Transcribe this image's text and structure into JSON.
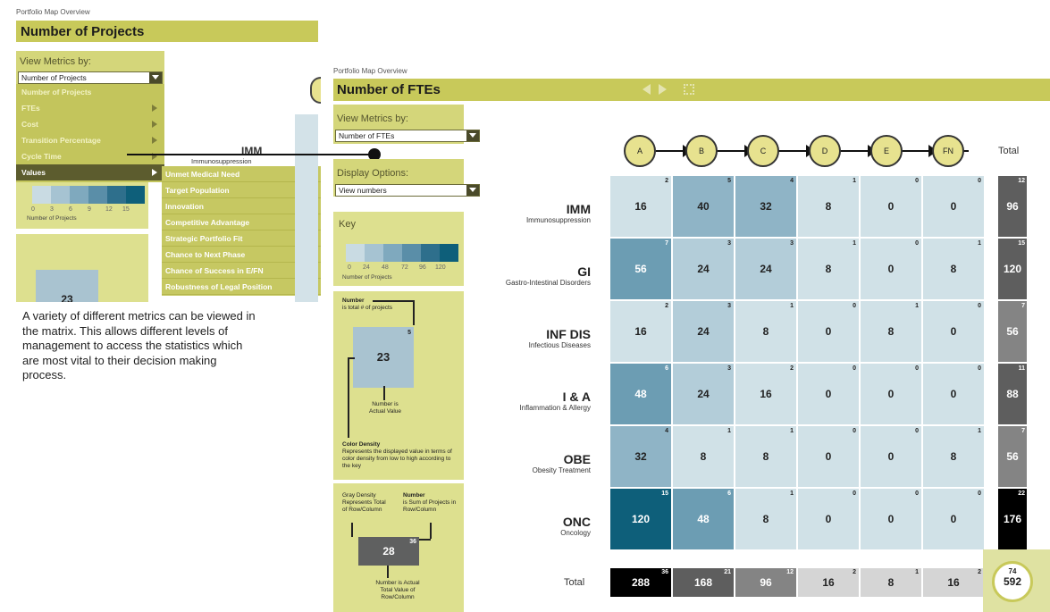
{
  "back_panel": {
    "breadcrumb": "Portfolio Map Overview",
    "title": "Number of Projects",
    "view_metrics_label": "View Metrics by:",
    "selected_metric": "Number of Projects",
    "menu_items": [
      {
        "label": "Number of Projects",
        "has_submenu": false
      },
      {
        "label": "FTEs",
        "has_submenu": true
      },
      {
        "label": "Cost",
        "has_submenu": true
      },
      {
        "label": "Transition Percentage",
        "has_submenu": true
      },
      {
        "label": "Cycle Time",
        "has_submenu": true
      },
      {
        "label": "Values",
        "has_submenu": true
      }
    ],
    "submenu_items": [
      "Unmet Medical Need",
      "Target Population",
      "Innovation",
      "Competitive Advantage",
      "Strategic Portfolio Fit",
      "Chance to Next Phase",
      "Chance of Success in E/FN",
      "Robustness of Legal Position"
    ],
    "key_ticks": [
      "0",
      "3",
      "6",
      "9",
      "12",
      "15"
    ],
    "key_caption": "Number of Projects",
    "behind_row_label": "IMM",
    "behind_row_sub": "Immunosuppression",
    "sample_value": "23"
  },
  "description": "A variety of different metrics can be viewed in the matrix. This allows different levels of management to access the statistics which are most vital to their decision making process.",
  "front_panel": {
    "breadcrumb": "Portfolio Map Overview",
    "title": "Number of FTEs",
    "view_metrics_label": "View Metrics by:",
    "selected_metric": "Number of FTEs",
    "display_options_label": "Display Options:",
    "display_option_value": "View numbers",
    "key": {
      "title": "Key",
      "ticks": [
        "0",
        "24",
        "48",
        "72",
        "96",
        "120"
      ],
      "caption": "Number of Projects"
    },
    "legend1": {
      "number_title": "Number",
      "number_desc": "is total # of projects",
      "sample_value": "23",
      "sample_count": "5",
      "actual_label": "Number is Actual Value",
      "color_density_title": "Color Density",
      "color_density_desc": "Represents the displayed value in terms of color density from low to high according to the key"
    },
    "legend2": {
      "gray_density": "Gray Density Represents Total of Row/Column",
      "number_title": "Number",
      "number_desc": "is Sum of Projects in Row/Column",
      "sample_value": "28",
      "sample_count": "36",
      "bottom_label": "Number is Actual Total Value of Row/Column"
    },
    "stages": [
      "A",
      "B",
      "C",
      "D",
      "E",
      "FN"
    ],
    "total_header": "Total",
    "rows": [
      {
        "code": "IMM",
        "name": "Immunosuppression",
        "cells": [
          {
            "v": "16",
            "c": "2"
          },
          {
            "v": "40",
            "c": "5"
          },
          {
            "v": "32",
            "c": "4"
          },
          {
            "v": "8",
            "c": "1"
          },
          {
            "v": "0",
            "c": "0"
          },
          {
            "v": "0",
            "c": "0"
          }
        ],
        "total": {
          "v": "96",
          "c": "12"
        }
      },
      {
        "code": "GI",
        "name": "Gastro-Intestinal Disorders",
        "cells": [
          {
            "v": "56",
            "c": "7"
          },
          {
            "v": "24",
            "c": "3"
          },
          {
            "v": "24",
            "c": "3"
          },
          {
            "v": "8",
            "c": "1"
          },
          {
            "v": "0",
            "c": "0"
          },
          {
            "v": "8",
            "c": "1"
          }
        ],
        "total": {
          "v": "120",
          "c": "15"
        }
      },
      {
        "code": "INF DIS",
        "name": "Infectious Diseases",
        "cells": [
          {
            "v": "16",
            "c": "2"
          },
          {
            "v": "24",
            "c": "3"
          },
          {
            "v": "8",
            "c": "1"
          },
          {
            "v": "0",
            "c": "0"
          },
          {
            "v": "8",
            "c": "1"
          },
          {
            "v": "0",
            "c": "0"
          }
        ],
        "total": {
          "v": "56",
          "c": "7"
        }
      },
      {
        "code": "I & A",
        "name": "Inflammation & Allergy",
        "cells": [
          {
            "v": "48",
            "c": "6"
          },
          {
            "v": "24",
            "c": "3"
          },
          {
            "v": "16",
            "c": "2"
          },
          {
            "v": "0",
            "c": "0"
          },
          {
            "v": "0",
            "c": "0"
          },
          {
            "v": "0",
            "c": "0"
          }
        ],
        "total": {
          "v": "88",
          "c": "11"
        }
      },
      {
        "code": "OBE",
        "name": "Obesity Treatment",
        "cells": [
          {
            "v": "32",
            "c": "4"
          },
          {
            "v": "8",
            "c": "1"
          },
          {
            "v": "8",
            "c": "1"
          },
          {
            "v": "0",
            "c": "0"
          },
          {
            "v": "0",
            "c": "0"
          },
          {
            "v": "8",
            "c": "1"
          }
        ],
        "total": {
          "v": "56",
          "c": "7"
        }
      },
      {
        "code": "ONC",
        "name": "Oncology",
        "cells": [
          {
            "v": "120",
            "c": "15"
          },
          {
            "v": "48",
            "c": "6"
          },
          {
            "v": "8",
            "c": "1"
          },
          {
            "v": "0",
            "c": "0"
          },
          {
            "v": "0",
            "c": "0"
          },
          {
            "v": "0",
            "c": "0"
          }
        ],
        "total": {
          "v": "176",
          "c": "22"
        }
      }
    ],
    "bottom_total_label": "Total",
    "column_totals": [
      {
        "v": "288",
        "c": "36"
      },
      {
        "v": "168",
        "c": "21"
      },
      {
        "v": "96",
        "c": "12"
      },
      {
        "v": "16",
        "c": "2"
      },
      {
        "v": "8",
        "c": "1"
      },
      {
        "v": "16",
        "c": "2"
      }
    ],
    "grand_total": {
      "v": "592",
      "c": "74"
    }
  },
  "colors": {
    "olive": "#c8c95a",
    "olive_light": "#dde08f",
    "cell_scale": [
      "#d0e1e7",
      "#b3cdd9",
      "#8fb4c6",
      "#6c9db3",
      "#4a8aa3",
      "#0e5f7a"
    ],
    "gray_scale": [
      "#d5d5d5",
      "#a9a9a9",
      "#848484",
      "#5e5e5e",
      "#3c3c3c",
      "#000000"
    ]
  }
}
